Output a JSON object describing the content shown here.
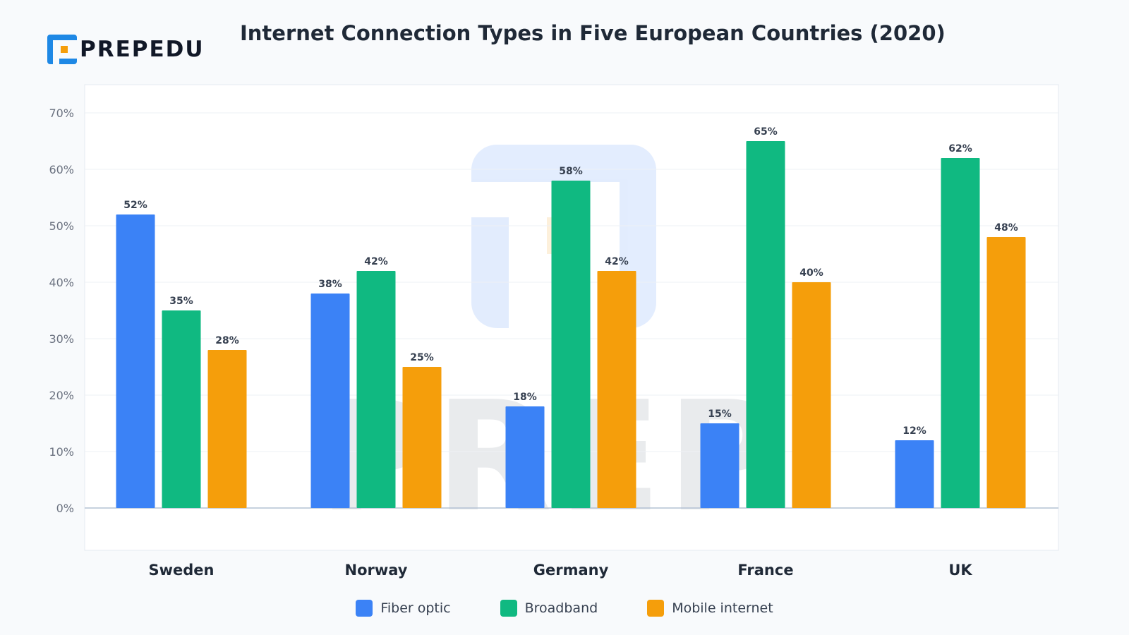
{
  "logo": {
    "text": "PREPEDU"
  },
  "watermark": {
    "text": "PREP"
  },
  "chart_data": {
    "type": "bar",
    "title": "Internet Connection Types in Five European Countries (2020)",
    "xlabel": "",
    "ylabel": "",
    "ylim": [
      0,
      70
    ],
    "yticks": [
      0,
      10,
      20,
      30,
      40,
      50,
      60,
      70
    ],
    "ytick_format": "{v}%",
    "grid": true,
    "legend_position": "bottom",
    "categories": [
      "Sweden",
      "Norway",
      "Germany",
      "France",
      "UK"
    ],
    "series": [
      {
        "name": "Fiber optic",
        "color": "#3b82f6",
        "values": [
          52,
          38,
          18,
          15,
          12
        ]
      },
      {
        "name": "Broadband",
        "color": "#10b981",
        "values": [
          35,
          42,
          58,
          65,
          62
        ]
      },
      {
        "name": "Mobile internet",
        "color": "#f59e0b",
        "values": [
          28,
          25,
          42,
          40,
          48
        ]
      }
    ]
  }
}
